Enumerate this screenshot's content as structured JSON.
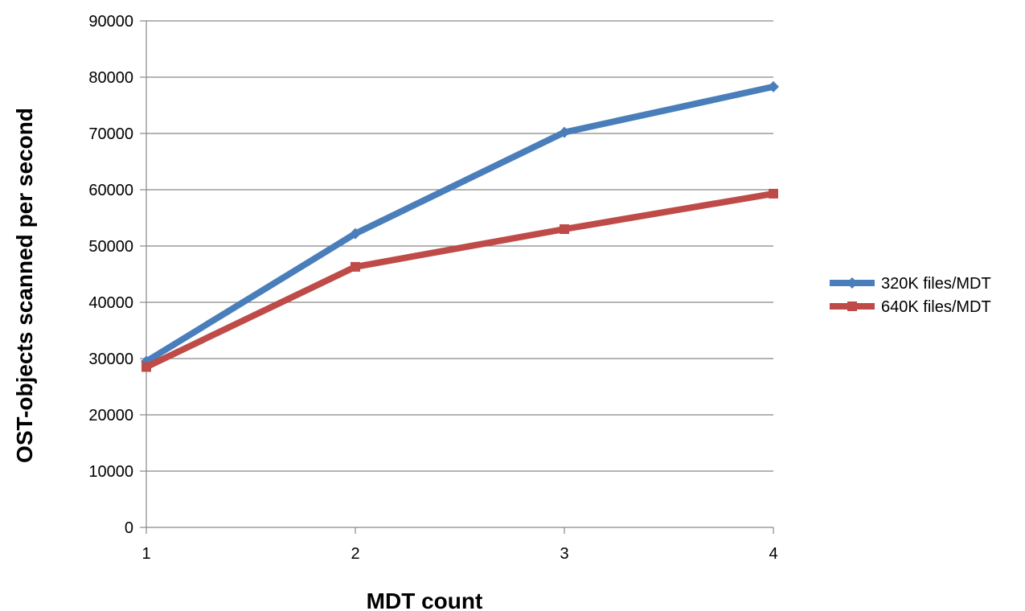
{
  "chart_data": {
    "type": "line",
    "x": [
      1,
      2,
      3,
      4
    ],
    "series": [
      {
        "name": "320K files/MDT",
        "color": "#4a7ebb",
        "marker": "diamond",
        "values": [
          29500,
          52200,
          70200,
          78300
        ]
      },
      {
        "name": "640K files/MDT",
        "color": "#be4b48",
        "marker": "square",
        "values": [
          28500,
          46300,
          53000,
          59300
        ]
      }
    ],
    "xlabel": "MDT count",
    "ylabel": "OST-objects scanned per second",
    "xticks": [
      "1",
      "2",
      "3",
      "4"
    ],
    "yticks": [
      "0",
      "10000",
      "20000",
      "30000",
      "40000",
      "50000",
      "60000",
      "70000",
      "80000",
      "90000"
    ],
    "ylim": [
      0,
      90000
    ],
    "grid": "horizontal",
    "legend": "right"
  }
}
